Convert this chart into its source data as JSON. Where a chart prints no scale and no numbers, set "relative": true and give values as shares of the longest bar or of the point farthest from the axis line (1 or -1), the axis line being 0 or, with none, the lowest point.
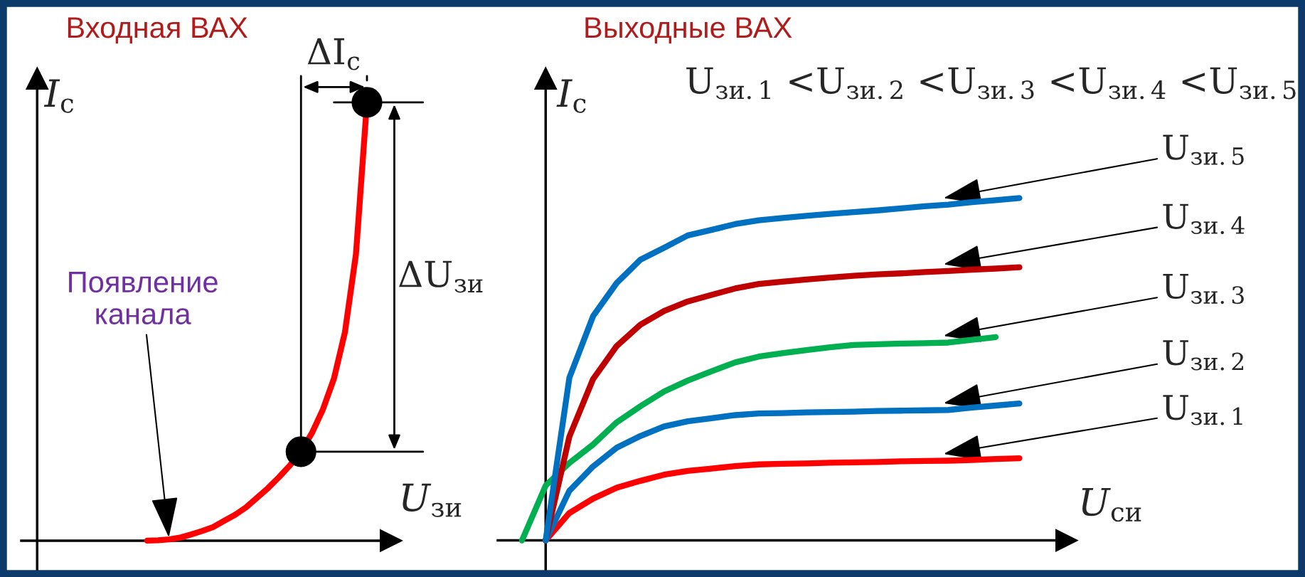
{
  "chart_data": [
    {
      "type": "line",
      "title": "Входная ВАХ",
      "xlabel": "U$_{зи}$",
      "ylabel": "I$_{с}$",
      "relative": true,
      "categories": [
        null,
        null,
        null,
        null,
        null,
        null,
        null,
        null,
        null,
        null,
        null,
        null,
        null,
        null,
        null,
        null,
        null,
        null,
        null,
        null,
        null,
        null,
        null,
        null,
        null,
        null,
        null,
        null,
        null,
        null,
        null
      ],
      "series": [
        {
          "color": "#ff0000",
          "values": [
            null,
            null,
            null,
            null,
            null,
            null,
            null,
            null,
            null,
            null,
            0,
            0.001,
            0.003,
            0.007,
            0.014,
            0.022,
            0.031,
            0.045,
            0.059,
            0.076,
            0.098,
            0.12,
            0.145,
            0.172,
            0.203,
            0.246,
            0.3,
            0.37,
            0.476,
            0.654,
            1.0
          ]
        }
      ],
      "annotations": [
        "Появление\nканала",
        "ΔI$_{с}$",
        "ΔU$_{зи}$"
      ]
    },
    {
      "type": "line",
      "title": "Выходные ВАХ",
      "xlabel": "U$_{си}$",
      "ylabel": "I$_{с}$",
      "relative": true,
      "categories": [
        null,
        null,
        null,
        null,
        null,
        null,
        null,
        null,
        null,
        null,
        null,
        null,
        null,
        null,
        null,
        null,
        null,
        null,
        null,
        null,
        null,
        null
      ],
      "series": [
        {
          "name": "U$_{зи.1}$",
          "color": "#ff0000",
          "values": [
            null,
            0,
            0.08,
            0.122,
            0.154,
            0.174,
            0.192,
            0.203,
            0.21,
            0.217,
            0.222,
            0.224,
            0.225,
            0.227,
            0.228,
            0.229,
            0.231,
            0.232,
            0.233,
            0.235,
            0.238,
            0.24
          ]
        },
        {
          "name": "U$_{зи.2}$",
          "color": "#0070c0",
          "values": [
            null,
            0,
            0.145,
            0.216,
            0.271,
            0.305,
            0.333,
            0.348,
            0.357,
            0.366,
            0.371,
            0.372,
            0.374,
            0.375,
            0.376,
            0.378,
            0.379,
            0.38,
            0.381,
            0.388,
            0.394,
            0.4
          ]
        },
        {
          "name": "U$_{зи.3}$",
          "color": "#00b050",
          "values": [
            0,
            0.16,
            0.226,
            0.28,
            0.345,
            0.392,
            0.435,
            0.467,
            0.494,
            0.52,
            0.537,
            0.547,
            0.556,
            0.564,
            0.571,
            0.573,
            0.575,
            0.576,
            0.578,
            0.586,
            0.594,
            null
          ]
        },
        {
          "name": "U$_{зи.4}$",
          "color": "#c00000",
          "values": [
            null,
            0,
            0.303,
            0.471,
            0.568,
            0.63,
            0.67,
            0.698,
            0.717,
            0.736,
            0.749,
            0.756,
            0.762,
            0.768,
            0.773,
            0.777,
            0.78,
            0.784,
            0.787,
            0.791,
            0.794,
            0.798
          ]
        },
        {
          "name": "U$_{зи.5}$",
          "color": "#0070c0",
          "values": [
            null,
            0,
            0.475,
            0.655,
            0.752,
            0.82,
            0.855,
            0.891,
            0.907,
            0.924,
            0.935,
            0.942,
            0.948,
            0.954,
            0.959,
            0.964,
            0.97,
            0.976,
            0.981,
            0.988,
            0.994,
            1.0
          ]
        }
      ],
      "annotations": [
        "U$_{зи.1}$ <U$_{зи.2}$ <U$_{зи.3}$ <U$_{зи.4}$ <U$_{зи.5}$"
      ]
    }
  ]
}
